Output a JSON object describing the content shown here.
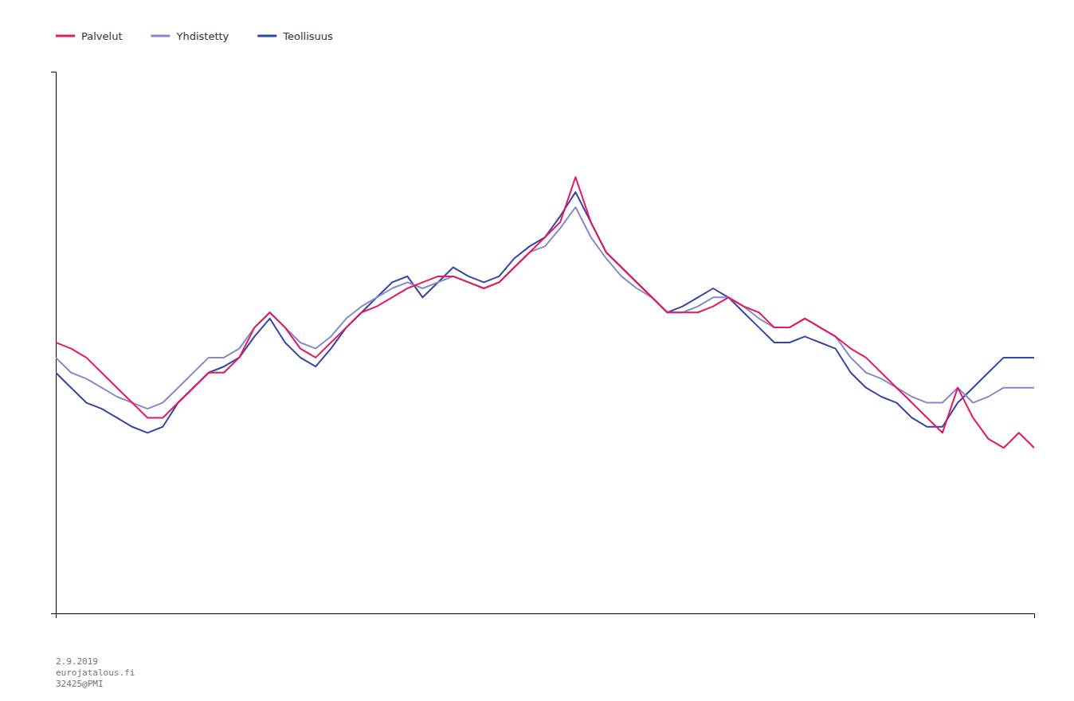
{
  "chart_data": {
    "type": "line",
    "categories": [
      null,
      null,
      null,
      null,
      null,
      null,
      null,
      null,
      null,
      null,
      null,
      null,
      null,
      null,
      null,
      null,
      null,
      null,
      null,
      null,
      null,
      null,
      null,
      null,
      null,
      null,
      null,
      null,
      null,
      null,
      null,
      null,
      null,
      null,
      null,
      null,
      null,
      null,
      null,
      null,
      null,
      null,
      null,
      null,
      null,
      null,
      null,
      null,
      null,
      null,
      null,
      null,
      null,
      null,
      null,
      null,
      null,
      null,
      null,
      null,
      null,
      null,
      null,
      null,
      null
    ],
    "series": [
      {
        "name": "Palvelut",
        "color": "#e8185a",
        "values": [
          53.0,
          52.8,
          52.5,
          52.0,
          51.5,
          51.0,
          50.5,
          50.5,
          51.0,
          51.5,
          52.0,
          52.0,
          52.5,
          53.5,
          54.0,
          53.5,
          52.8,
          52.5,
          53.0,
          53.5,
          54.0,
          54.2,
          54.5,
          54.8,
          55.0,
          55.2,
          55.2,
          55.0,
          54.8,
          55.0,
          55.5,
          56.0,
          56.5,
          57.0,
          58.5,
          57.0,
          56.0,
          55.5,
          55.0,
          54.5,
          54.0,
          54.0,
          54.0,
          54.2,
          54.5,
          54.2,
          54.0,
          53.5,
          53.5,
          53.8,
          53.5,
          53.2,
          52.8,
          52.5,
          52.0,
          51.5,
          51.0,
          50.5,
          50.0,
          51.5,
          50.5,
          49.8,
          49.5,
          50.0,
          49.5
        ]
      },
      {
        "name": "Yhdistetty",
        "color": "#8888cc",
        "values": [
          52.5,
          52.0,
          51.8,
          51.5,
          51.2,
          51.0,
          50.8,
          51.0,
          51.5,
          52.0,
          52.5,
          52.5,
          52.8,
          53.5,
          54.0,
          53.5,
          53.0,
          52.8,
          53.2,
          53.8,
          54.2,
          54.5,
          54.8,
          55.0,
          54.8,
          55.0,
          55.2,
          55.0,
          54.8,
          55.0,
          55.5,
          56.0,
          56.2,
          56.8,
          57.5,
          56.5,
          55.8,
          55.2,
          54.8,
          54.5,
          54.0,
          54.0,
          54.2,
          54.5,
          54.5,
          54.2,
          53.8,
          53.5,
          53.5,
          53.8,
          53.5,
          53.2,
          52.5,
          52.0,
          51.8,
          51.5,
          51.2,
          51.0,
          51.0,
          51.5,
          51.0,
          51.2,
          51.5,
          51.5,
          51.5
        ]
      },
      {
        "name": "Teollisuus",
        "color": "#3344aa",
        "values": [
          52.0,
          51.5,
          51.0,
          50.8,
          50.5,
          50.2,
          50.0,
          50.2,
          51.0,
          51.5,
          52.0,
          52.2,
          52.5,
          53.2,
          53.8,
          53.0,
          52.5,
          52.2,
          52.8,
          53.5,
          54.0,
          54.5,
          55.0,
          55.2,
          54.5,
          55.0,
          55.5,
          55.2,
          55.0,
          55.2,
          55.8,
          56.2,
          56.5,
          57.2,
          58.0,
          57.0,
          56.0,
          55.5,
          55.0,
          54.5,
          54.0,
          54.2,
          54.5,
          54.8,
          54.5,
          54.0,
          53.5,
          53.0,
          53.0,
          53.2,
          53.0,
          52.8,
          52.0,
          51.5,
          51.2,
          51.0,
          50.5,
          50.2,
          50.2,
          51.0,
          51.5,
          52.0,
          52.5,
          52.5,
          52.5
        ]
      }
    ],
    "ylim": [
      44,
      62
    ],
    "yticks": [],
    "grid": false,
    "legend": "upper left",
    "tick_labels": false,
    "annotations": [
      "2.9.2019\neurojatalous.fi\n32425@PMI"
    ]
  }
}
